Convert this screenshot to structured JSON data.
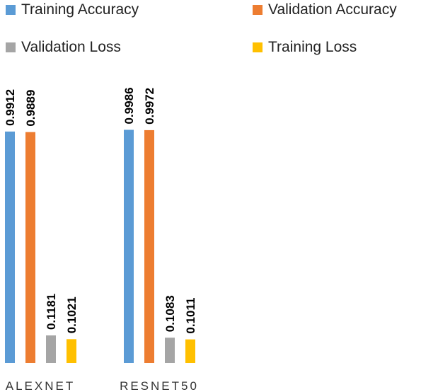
{
  "chart_data": {
    "type": "bar",
    "categories": [
      "ALEXNET",
      "RESNET50"
    ],
    "series": [
      {
        "name": "Training Accuracy",
        "values": [
          0.9912,
          0.9986
        ],
        "color": "#5B9BD5"
      },
      {
        "name": "Validation Accuracy",
        "values": [
          0.9889,
          0.9972
        ],
        "color": "#ED7D31"
      },
      {
        "name": "Validation Loss",
        "values": [
          0.1181,
          0.1083
        ],
        "color": "#A5A5A5"
      },
      {
        "name": "Training Loss",
        "values": [
          0.1021,
          0.1011
        ],
        "color": "#FFC000"
      }
    ],
    "data_labels": {
      "ALEXNET": [
        "0.9912",
        "0.9889",
        "0.1181",
        "0.1021"
      ],
      "RESNET50": [
        "0.9986",
        "0.9972",
        "0.1083",
        "0.1011"
      ]
    },
    "ylim": [
      0,
      1
    ],
    "grid": false,
    "legend_position": "top"
  }
}
